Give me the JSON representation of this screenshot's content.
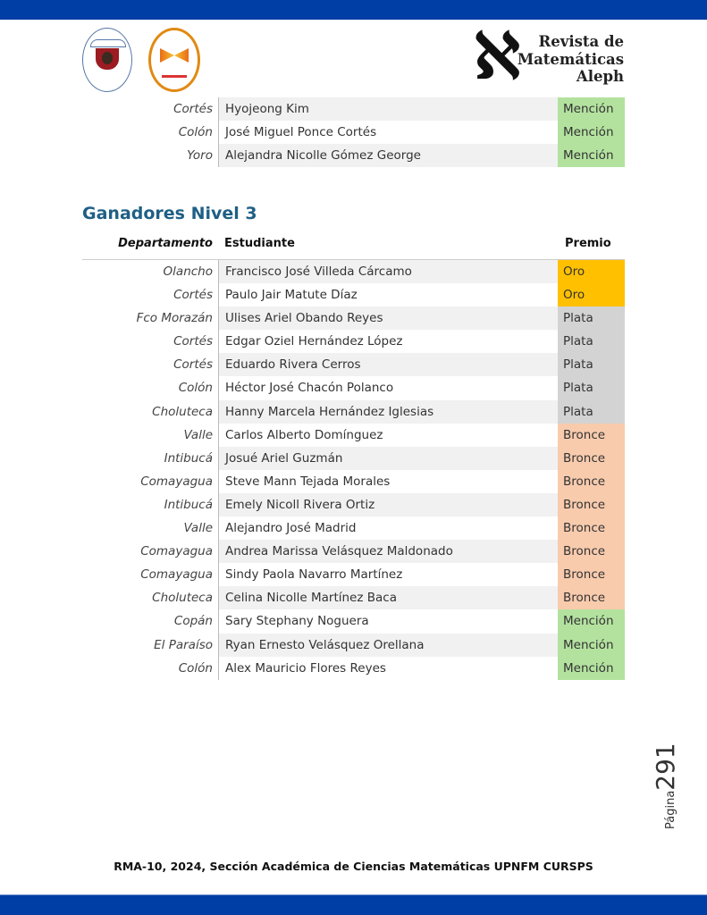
{
  "header": {
    "brand_lines": [
      "Revista de",
      "Matemáticas",
      "Aleph"
    ],
    "aleph_glyph": "ℵ"
  },
  "colors": {
    "blue_bar": "#003da5",
    "heading": "#1f5f85",
    "Oro": "#ffc000",
    "Plata": "#d3d3d3",
    "Bronce": "#f8cbad",
    "Mención": "#b3e29f"
  },
  "continued_rows": [
    {
      "dept": "Cortés",
      "student": "Hyojeong Kim",
      "prize": "Mención"
    },
    {
      "dept": "Colón",
      "student": "José Miguel Ponce Cortés",
      "prize": "Mención"
    },
    {
      "dept": "Yoro",
      "student": "Alejandra Nicolle Gómez George",
      "prize": "Mención"
    }
  ],
  "section": {
    "title": "Ganadores Nivel 3",
    "columns": {
      "dept": "Departamento",
      "student": "Estudiante",
      "prize": "Premio"
    },
    "rows": [
      {
        "dept": "Olancho",
        "student": "Francisco José Villeda Cárcamo",
        "prize": "Oro"
      },
      {
        "dept": "Cortés",
        "student": "Paulo Jair Matute Díaz",
        "prize": "Oro"
      },
      {
        "dept": "Fco Morazán",
        "student": "Ulises Ariel Obando Reyes",
        "prize": "Plata"
      },
      {
        "dept": "Cortés",
        "student": "Edgar Oziel Hernández López",
        "prize": "Plata"
      },
      {
        "dept": "Cortés",
        "student": "Eduardo Rivera Cerros",
        "prize": "Plata"
      },
      {
        "dept": "Colón",
        "student": "Héctor José Chacón Polanco",
        "prize": "Plata"
      },
      {
        "dept": "Choluteca",
        "student": "Hanny Marcela Hernández Iglesias",
        "prize": "Plata"
      },
      {
        "dept": "Valle",
        "student": "Carlos Alberto Domínguez",
        "prize": "Bronce"
      },
      {
        "dept": "Intibucá",
        "student": "Josué Ariel Guzmán",
        "prize": "Bronce"
      },
      {
        "dept": "Comayagua",
        "student": "Steve Mann Tejada Morales",
        "prize": "Bronce"
      },
      {
        "dept": "Intibucá",
        "student": "Emely Nicoll Rivera Ortiz",
        "prize": "Bronce"
      },
      {
        "dept": "Valle",
        "student": "Alejandro José Madrid",
        "prize": "Bronce"
      },
      {
        "dept": "Comayagua",
        "student": "Andrea Marissa Velásquez Maldonado",
        "prize": "Bronce"
      },
      {
        "dept": "Comayagua",
        "student": "Sindy Paola Navarro Martínez",
        "prize": "Bronce"
      },
      {
        "dept": "Choluteca",
        "student": "Celina Nicolle Martínez Baca",
        "prize": "Bronce"
      },
      {
        "dept": "Copán",
        "student": "Sary Stephany Noguera",
        "prize": "Mención"
      },
      {
        "dept": "El Paraíso",
        "student": "Ryan Ernesto Velásquez Orellana",
        "prize": "Mención"
      },
      {
        "dept": "Colón",
        "student": "Alex Mauricio Flores Reyes",
        "prize": "Mención"
      }
    ]
  },
  "page": {
    "label": "Página",
    "number": "291"
  },
  "footer": {
    "text": "RMA-10, 2024, Sección Académica de Ciencias Matemáticas UPNFM CURSPS"
  }
}
